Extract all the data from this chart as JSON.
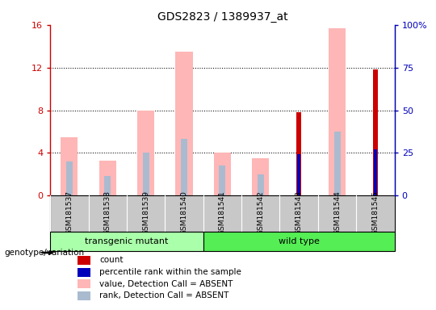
{
  "title": "GDS2823 / 1389937_at",
  "samples": [
    "GSM181537",
    "GSM181538",
    "GSM181539",
    "GSM181540",
    "GSM181541",
    "GSM181542",
    "GSM181543",
    "GSM181544",
    "GSM181545"
  ],
  "pink_value": [
    5.5,
    3.3,
    8.0,
    13.5,
    4.0,
    3.5,
    0.0,
    15.7,
    0.0
  ],
  "light_blue_rank": [
    3.2,
    1.8,
    4.0,
    5.3,
    2.8,
    2.0,
    0.0,
    6.0,
    0.0
  ],
  "red_count": [
    0.0,
    0.0,
    0.0,
    0.0,
    0.0,
    0.0,
    7.8,
    0.0,
    11.8
  ],
  "blue_pct": [
    0.0,
    0.0,
    0.0,
    0.0,
    0.0,
    0.0,
    3.9,
    0.0,
    4.3
  ],
  "ylim": [
    0,
    16
  ],
  "y2lim": [
    0,
    100
  ],
  "yticks": [
    0,
    4,
    8,
    12,
    16
  ],
  "y2ticks": [
    0,
    25,
    50,
    75,
    100
  ],
  "ytick_labels": [
    "0",
    "4",
    "8",
    "12",
    "16"
  ],
  "y2tick_labels": [
    "0",
    "25",
    "50",
    "75",
    "100%"
  ],
  "groups": [
    {
      "label": "transgenic mutant",
      "start": 0,
      "end": 3,
      "color": "#AAFFAA"
    },
    {
      "label": "wild type",
      "start": 4,
      "end": 8,
      "color": "#55EE55"
    }
  ],
  "legend_labels": [
    "count",
    "percentile rank within the sample",
    "value, Detection Call = ABSENT",
    "rank, Detection Call = ABSENT"
  ],
  "legend_colors": [
    "#CC0000",
    "#0000BB",
    "#FFB6B6",
    "#AABBD0"
  ],
  "pink_color": "#FFB6B6",
  "light_blue_color": "#AABBD0",
  "red_color": "#CC0000",
  "blue_color": "#0000BB",
  "left_axis_color": "#CC0000",
  "right_axis_color": "#0000BB",
  "bar_width": 0.45,
  "dotted_lines": [
    4,
    8,
    12
  ],
  "gray_col_color": "#C8C8C8",
  "annotation_label": "genotype/variation"
}
